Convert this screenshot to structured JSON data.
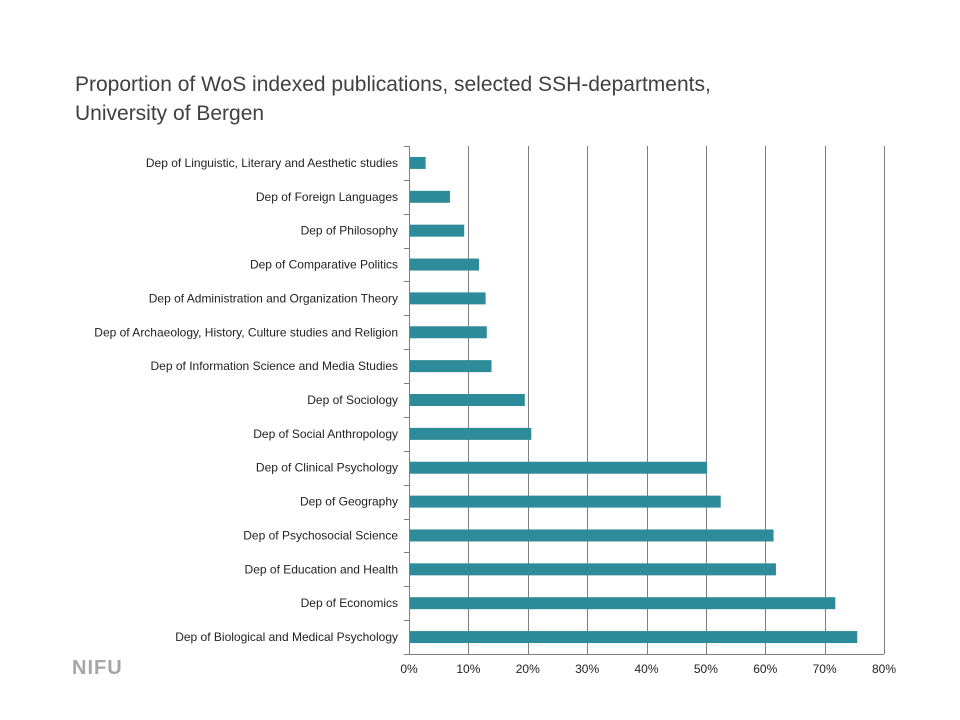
{
  "slide": {
    "title_line1": "Proportion of WoS indexed publications, selected SSH-departments,",
    "title_line2": "University of Bergen",
    "logo_text": "NIFU"
  },
  "colors": {
    "bar": "#2e8b9a",
    "gridline": "#7f7f7f",
    "text": "#222222"
  },
  "chart_data": {
    "type": "bar",
    "orientation": "horizontal",
    "title": "Proportion of WoS indexed publications, selected SSH-departments, University of Bergen",
    "xlabel": "",
    "ylabel": "",
    "xlim": [
      0,
      0.8
    ],
    "x_ticks": [
      0,
      0.1,
      0.2,
      0.3,
      0.4,
      0.5,
      0.6,
      0.7,
      0.8
    ],
    "x_tick_labels": [
      "0%",
      "10%",
      "20%",
      "30%",
      "40%",
      "50%",
      "60%",
      "70%",
      "80%"
    ],
    "grid": "vertical gridlines",
    "legend": "none",
    "categories": [
      "Dep of Linguistic, Literary and Aesthetic studies",
      "Dep of Foreign Languages",
      "Dep of Philosophy",
      "Dep of Comparative Politics",
      "Dep of Administration and Organization Theory",
      "Dep of Archaeology, History, Culture studies and Religion",
      "Dep of Information Science and Media Studies",
      "Dep of Sociology",
      "Dep of Social Anthropology",
      "Dep of Clinical Psychology",
      "Dep of Geography",
      "Dep of Psychosocial Science",
      "Dep of Education and Health",
      "Dep of Economics",
      "Dep of Biological and Medical Psychology"
    ],
    "values": [
      0.028,
      0.069,
      0.093,
      0.118,
      0.129,
      0.131,
      0.139,
      0.195,
      0.206,
      0.502,
      0.525,
      0.614,
      0.618,
      0.718,
      0.755
    ]
  }
}
